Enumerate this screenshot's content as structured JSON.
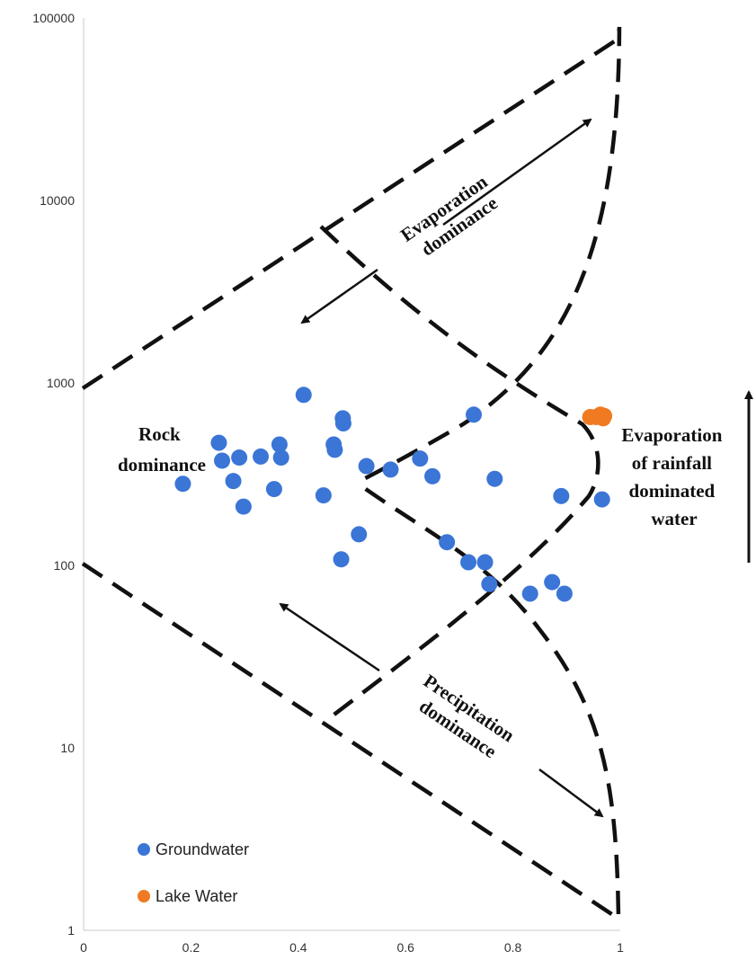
{
  "chart_data": {
    "type": "scatter",
    "title": "",
    "xlabel": "",
    "ylabel": "",
    "xlim": [
      0,
      1
    ],
    "ylim": [
      1,
      100000
    ],
    "y_scale": "log",
    "grid": false,
    "legend_position": "bottom-left",
    "x_ticks": [
      "0",
      "0.2",
      "0.4",
      "0.6",
      "0.8",
      "1"
    ],
    "y_ticks": [
      "1",
      "10",
      "100",
      "1000",
      "10000",
      "100000"
    ],
    "series": [
      {
        "name": "Groundwater",
        "color": "#3b75d6",
        "points": [
          [
            0.185,
            280
          ],
          [
            0.252,
            470
          ],
          [
            0.258,
            375
          ],
          [
            0.279,
            290
          ],
          [
            0.29,
            390
          ],
          [
            0.298,
            210
          ],
          [
            0.33,
            395
          ],
          [
            0.355,
            262
          ],
          [
            0.365,
            460
          ],
          [
            0.368,
            390
          ],
          [
            0.41,
            860
          ],
          [
            0.447,
            242
          ],
          [
            0.466,
            460
          ],
          [
            0.468,
            430
          ],
          [
            0.48,
            108
          ],
          [
            0.483,
            640
          ],
          [
            0.484,
            600
          ],
          [
            0.513,
            148
          ],
          [
            0.527,
            350
          ],
          [
            0.572,
            335
          ],
          [
            0.627,
            385
          ],
          [
            0.65,
            308
          ],
          [
            0.677,
            134
          ],
          [
            0.717,
            104
          ],
          [
            0.727,
            670
          ],
          [
            0.748,
            104
          ],
          [
            0.756,
            79
          ],
          [
            0.766,
            298
          ],
          [
            0.832,
            70
          ],
          [
            0.873,
            81
          ],
          [
            0.89,
            240
          ],
          [
            0.896,
            70
          ],
          [
            0.966,
            230
          ]
        ]
      },
      {
        "name": "Lake Water",
        "color": "#f07a22",
        "points": [
          [
            0.944,
            650
          ],
          [
            0.955,
            650
          ],
          [
            0.963,
            670
          ],
          [
            0.968,
            640
          ],
          [
            0.97,
            660
          ]
        ]
      }
    ],
    "annotations": {
      "evaporation": [
        "Evaporation",
        "dominance"
      ],
      "rock": [
        "Rock",
        "dominance"
      ],
      "evaporation_rainfall": [
        "Evaporation",
        "of rainfall",
        "dominated",
        "water"
      ],
      "precipitation": [
        "Precipitation",
        "dominance"
      ]
    }
  }
}
